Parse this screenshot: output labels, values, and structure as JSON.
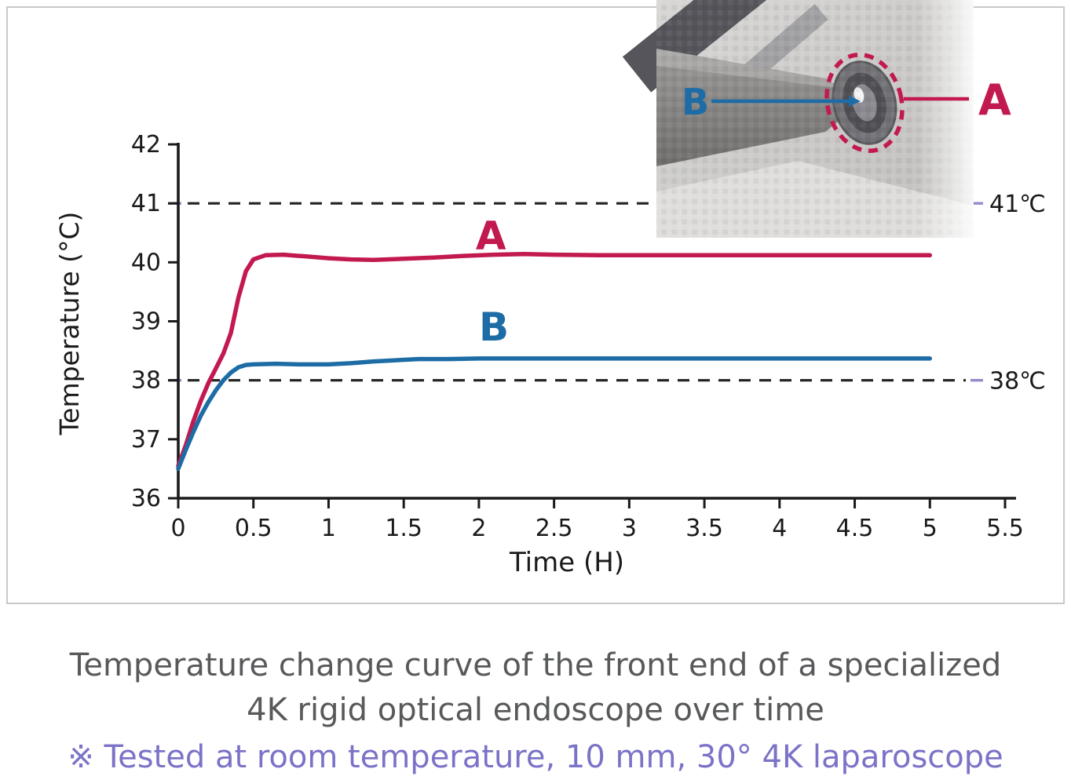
{
  "colors": {
    "series_a": "#c2194f",
    "series_b": "#1d6ca6",
    "axis": "#1a1a1a",
    "dash_line": "#222222",
    "dash_accent": "#938dcb",
    "caption_text": "#58595b",
    "note_text": "#7a73c8",
    "frame_border": "#c9c9c9"
  },
  "chart_data": {
    "type": "line",
    "title": "",
    "xlabel": "Time (H)",
    "ylabel": "Temperature (°C)",
    "xlim": [
      0,
      5.5
    ],
    "ylim": [
      36,
      42
    ],
    "xticks": [
      0,
      0.5,
      1,
      1.5,
      2,
      2.5,
      3,
      3.5,
      4,
      4.5,
      5,
      5.5
    ],
    "yticks": [
      36,
      37,
      38,
      39,
      40,
      41,
      42
    ],
    "grid": false,
    "legend_position": "inline-labels",
    "reference_lines": [
      {
        "y": 41,
        "label": "41℃",
        "style": "dashed"
      },
      {
        "y": 38,
        "label": "38℃",
        "style": "dashed"
      }
    ],
    "series": [
      {
        "name": "A",
        "color": "#c2194f",
        "label_pos": {
          "x": 2.08,
          "y": 40.45
        },
        "points": [
          [
            0,
            36.55
          ],
          [
            0.05,
            36.9
          ],
          [
            0.1,
            37.3
          ],
          [
            0.15,
            37.65
          ],
          [
            0.2,
            37.95
          ],
          [
            0.25,
            38.2
          ],
          [
            0.3,
            38.45
          ],
          [
            0.35,
            38.8
          ],
          [
            0.4,
            39.4
          ],
          [
            0.45,
            39.85
          ],
          [
            0.5,
            40.05
          ],
          [
            0.58,
            40.12
          ],
          [
            0.7,
            40.13
          ],
          [
            0.85,
            40.1
          ],
          [
            1,
            40.07
          ],
          [
            1.15,
            40.05
          ],
          [
            1.3,
            40.04
          ],
          [
            1.5,
            40.06
          ],
          [
            1.7,
            40.08
          ],
          [
            1.9,
            40.11
          ],
          [
            2.1,
            40.13
          ],
          [
            2.3,
            40.14
          ],
          [
            2.5,
            40.13
          ],
          [
            2.8,
            40.12
          ],
          [
            3.2,
            40.12
          ],
          [
            3.6,
            40.12
          ],
          [
            4,
            40.12
          ],
          [
            4.5,
            40.12
          ],
          [
            5,
            40.12
          ]
        ]
      },
      {
        "name": "B",
        "color": "#1d6ca6",
        "label_pos": {
          "x": 2.1,
          "y": 38.9
        },
        "points": [
          [
            0,
            36.5
          ],
          [
            0.05,
            36.82
          ],
          [
            0.1,
            37.12
          ],
          [
            0.15,
            37.4
          ],
          [
            0.2,
            37.63
          ],
          [
            0.25,
            37.83
          ],
          [
            0.3,
            38.0
          ],
          [
            0.35,
            38.13
          ],
          [
            0.4,
            38.22
          ],
          [
            0.45,
            38.26
          ],
          [
            0.5,
            38.27
          ],
          [
            0.65,
            38.28
          ],
          [
            0.8,
            38.27
          ],
          [
            1,
            38.27
          ],
          [
            1.15,
            38.29
          ],
          [
            1.3,
            38.32
          ],
          [
            1.45,
            38.34
          ],
          [
            1.6,
            38.36
          ],
          [
            1.8,
            38.36
          ],
          [
            2,
            38.37
          ],
          [
            2.5,
            38.37
          ],
          [
            3,
            38.37
          ],
          [
            3.5,
            38.37
          ],
          [
            4,
            38.37
          ],
          [
            4.5,
            38.37
          ],
          [
            5,
            38.37
          ]
        ]
      }
    ]
  },
  "inset": {
    "label_a": "A",
    "label_b": "B"
  },
  "caption": {
    "line1": "Temperature change curve of the front end of a specialized",
    "line2": "4K rigid optical endoscope over time",
    "note": "※ Tested at room temperature, 10 mm, 30° 4K laparoscope"
  }
}
